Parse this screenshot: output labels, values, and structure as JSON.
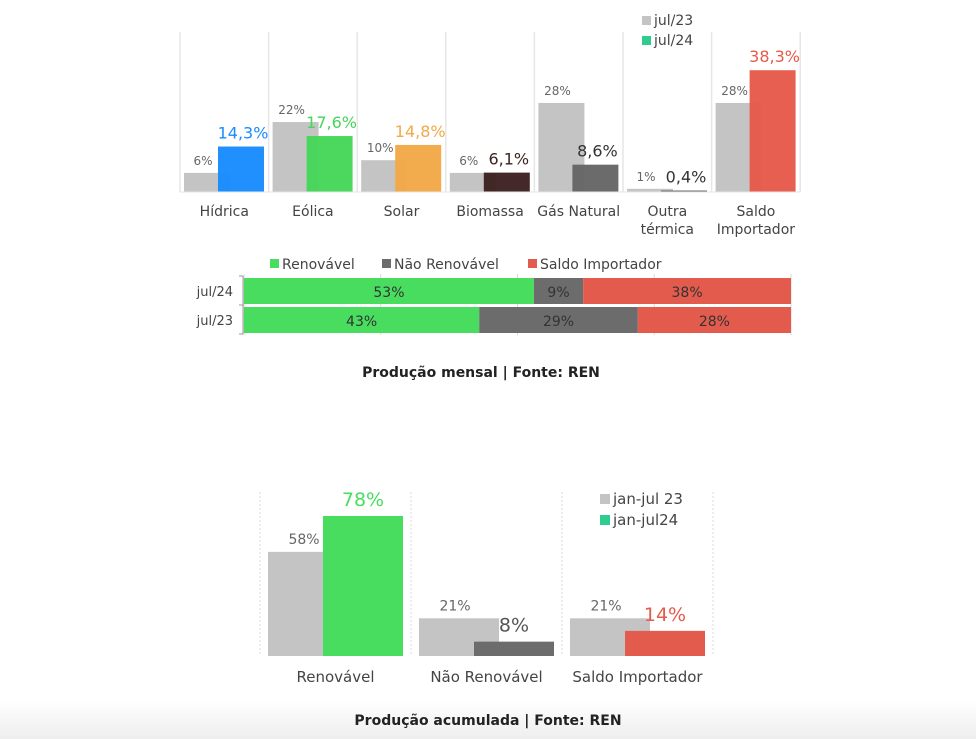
{
  "chart_data": [
    {
      "type": "bar",
      "title": "",
      "categories": [
        "Hídrica",
        "Eólica",
        "Solar",
        "Biomassa",
        "Gás Natural",
        "Outra térmica",
        "Saldo Importador"
      ],
      "category_lines": [
        [
          "Hídrica"
        ],
        [
          "Eólica"
        ],
        [
          "Solar"
        ],
        [
          "Biomassa"
        ],
        [
          "Gás Natural"
        ],
        [
          "Outra",
          "térmica"
        ],
        [
          "Saldo",
          "Importador"
        ]
      ],
      "series": [
        {
          "name": "jul/23",
          "values": [
            6,
            22,
            10,
            6,
            28,
            1,
            28
          ],
          "labels": [
            "6%",
            "22%",
            "10%",
            "6%",
            "28%",
            "1%",
            "28%"
          ],
          "color": "#c4c4c4"
        },
        {
          "name": "jul/24",
          "values": [
            14.3,
            17.6,
            14.8,
            6.1,
            8.6,
            0.4,
            38.3
          ],
          "labels": [
            "14,3%",
            "17,6%",
            "14,8%",
            "6,1%",
            "8,6%",
            "0,4%",
            "38,3%"
          ],
          "colors": [
            "#1a8cff",
            "#46d65a",
            "#f2a947",
            "#3e2222",
            "#666666",
            "#666666",
            "#e65a4b"
          ],
          "label_colors": [
            "#1a8cff",
            "#46d65a",
            "#f2a947",
            "#3e2222",
            "#333333",
            "#333333",
            "#e65a4b"
          ]
        }
      ],
      "legend": [
        {
          "label": "jul/23",
          "color": "#c4c4c4"
        },
        {
          "label": "jul/24",
          "color": "#2ecc8f"
        }
      ],
      "legend_position": "top-right",
      "ylim": [
        0,
        45
      ],
      "grid": true
    },
    {
      "type": "bar",
      "orientation": "horizontal-stacked-100",
      "categories": [
        "jul/24",
        "jul/23"
      ],
      "series": [
        {
          "name": "Renovável",
          "values": [
            53,
            43
          ],
          "color": "#49dd5f"
        },
        {
          "name": "Não Renovável",
          "values": [
            9,
            29
          ],
          "color": "#6c6c6c"
        },
        {
          "name": "Saldo Importador",
          "values": [
            38,
            28
          ],
          "color": "#e35b4c"
        }
      ],
      "legend_position": "top",
      "xlim": [
        0,
        100
      ],
      "grid": true
    },
    {
      "type": "bar",
      "categories": [
        "Renovável",
        "Não Renovável",
        "Saldo Importador"
      ],
      "series": [
        {
          "name": "jan-jul 23",
          "values": [
            58,
            21,
            21
          ],
          "labels": [
            "58%",
            "21%",
            "21%"
          ],
          "color": "#c4c4c4"
        },
        {
          "name": "jan-jul24",
          "values": [
            78,
            8,
            14
          ],
          "labels": [
            "78%",
            "8%",
            "14%"
          ],
          "colors": [
            "#49dd5f",
            "#6c6c6c",
            "#e35b4c"
          ],
          "label_colors": [
            "#49dd5f",
            "#555555",
            "#e35b4c"
          ]
        }
      ],
      "legend": [
        {
          "label": "jan-jul 23",
          "color": "#c4c4c4"
        },
        {
          "label": "jan-jul24",
          "color": "#2ecc8f"
        }
      ],
      "legend_position": "top-right",
      "ylim": [
        0,
        85
      ],
      "grid": true
    }
  ],
  "captions": {
    "monthly": "Produção mensal  | Fonte: REN",
    "accumulated": "Produção acumulada | Fonte: REN"
  }
}
